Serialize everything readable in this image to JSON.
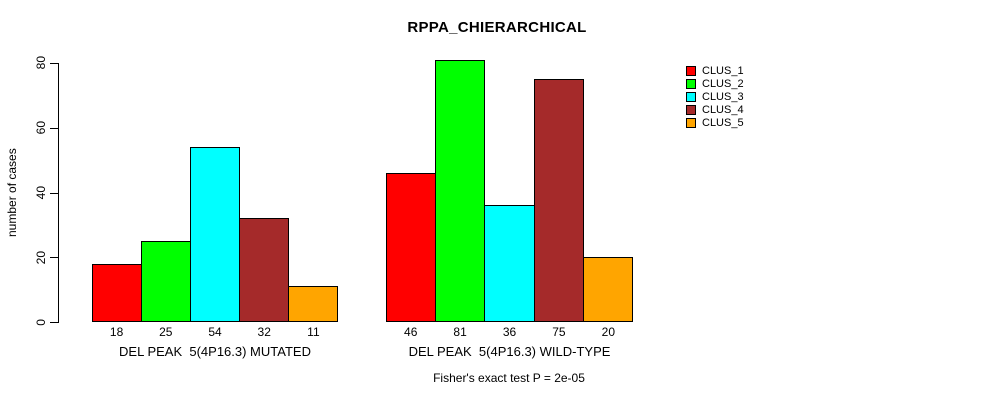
{
  "chart_data": {
    "type": "bar",
    "title": "RPPA_CHIERARCHICAL",
    "ylabel": "number of cases",
    "xlabel": "",
    "ylim": [
      0,
      80
    ],
    "yticks": [
      0,
      20,
      40,
      60,
      80
    ],
    "grid": false,
    "legend_position": "right",
    "bar_value_labels_shown": true,
    "categories": [
      "DEL PEAK  5(4P16.3) MUTATED",
      "DEL PEAK  5(4P16.3) WILD-TYPE"
    ],
    "series": [
      {
        "name": "CLUS_1",
        "color": "#FF0000",
        "values": [
          18,
          46
        ]
      },
      {
        "name": "CLUS_2",
        "color": "#00FF00",
        "values": [
          25,
          81
        ]
      },
      {
        "name": "CLUS_3",
        "color": "#00FFFF",
        "values": [
          54,
          36
        ]
      },
      {
        "name": "CLUS_4",
        "color": "#A52A2A",
        "values": [
          32,
          75
        ]
      },
      {
        "name": "CLUS_5",
        "color": "#FFA500",
        "values": [
          11,
          20
        ]
      }
    ],
    "footnote": "Fisher's exact test P = 2e-05",
    "colors": {
      "background": "#FFFFFF",
      "axis": "#000000",
      "text": "#000000"
    }
  }
}
